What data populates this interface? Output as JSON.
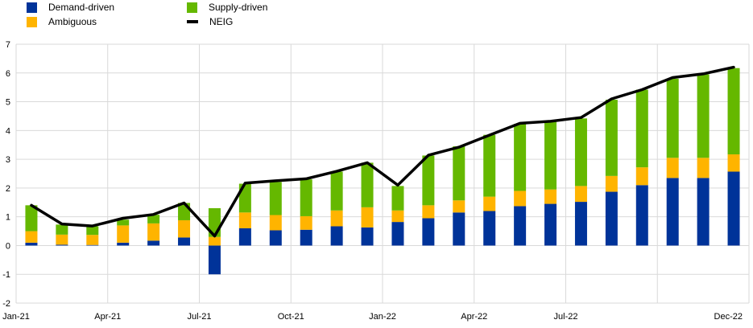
{
  "chart_data": {
    "type": "bar",
    "stacked": true,
    "categories": [
      "Jan-21",
      "Feb-21",
      "Mar-21",
      "Apr-21",
      "May-21",
      "Jun-21",
      "Jul-21",
      "Aug-21",
      "Sep-21",
      "Oct-21",
      "Nov-21",
      "Dec-21",
      "Jan-22",
      "Feb-22",
      "Mar-22",
      "Apr-22",
      "May-22",
      "Jun-22",
      "Jul-22",
      "Aug-22",
      "Sep-22",
      "Oct-22",
      "Nov-22",
      "Dec-22"
    ],
    "x_tick_labels": [
      "Jan-21",
      "Apr-21",
      "Jul-21",
      "Oct-21",
      "Jan-22",
      "Apr-22",
      "Jul-22",
      "Dec-22"
    ],
    "series": [
      {
        "name": "Demand-driven",
        "color": "#003399",
        "values": [
          0.1,
          0.03,
          0.02,
          0.1,
          0.17,
          0.28,
          -1.0,
          0.6,
          0.53,
          0.55,
          0.67,
          0.63,
          0.82,
          0.95,
          1.15,
          1.2,
          1.37,
          1.45,
          1.52,
          1.87,
          2.1,
          2.35,
          2.35,
          2.57
        ]
      },
      {
        "name": "Ambiguous",
        "color": "#FFB400",
        "values": [
          0.4,
          0.35,
          0.35,
          0.6,
          0.6,
          0.6,
          0.3,
          0.55,
          0.53,
          0.47,
          0.55,
          0.7,
          0.4,
          0.45,
          0.42,
          0.5,
          0.53,
          0.5,
          0.55,
          0.55,
          0.62,
          0.7,
          0.7,
          0.6
        ]
      },
      {
        "name": "Supply-driven",
        "color": "#65B800",
        "values": [
          0.9,
          0.35,
          0.3,
          0.2,
          0.3,
          0.6,
          1.0,
          1.0,
          1.15,
          1.28,
          1.35,
          1.55,
          0.85,
          1.73,
          1.88,
          2.15,
          2.33,
          2.35,
          2.35,
          2.65,
          2.7,
          2.75,
          2.9,
          3.0
        ]
      }
    ],
    "line": {
      "name": "NEIG",
      "color": "#000000",
      "values": [
        1.4,
        0.75,
        0.68,
        0.95,
        1.08,
        1.48,
        0.33,
        2.17,
        2.25,
        2.32,
        2.58,
        2.88,
        2.1,
        3.14,
        3.42,
        3.84,
        4.25,
        4.32,
        4.45,
        5.1,
        5.42,
        5.84,
        5.97,
        6.2
      ]
    },
    "ylim": [
      -2,
      7
    ],
    "yticks": [
      -2,
      -1,
      0,
      1,
      2,
      3,
      4,
      5,
      6,
      7
    ],
    "title": "",
    "xlabel": "",
    "ylabel": "",
    "grid": "horizontal",
    "legend_position": "top-left"
  },
  "legend": {
    "items": [
      {
        "label": "Demand-driven",
        "color": "#003399",
        "kind": "bar"
      },
      {
        "label": "Supply-driven",
        "color": "#65B800",
        "kind": "bar"
      },
      {
        "label": "Ambiguous",
        "color": "#FFB400",
        "kind": "bar"
      },
      {
        "label": "NEIG",
        "color": "#000000",
        "kind": "line"
      }
    ]
  }
}
